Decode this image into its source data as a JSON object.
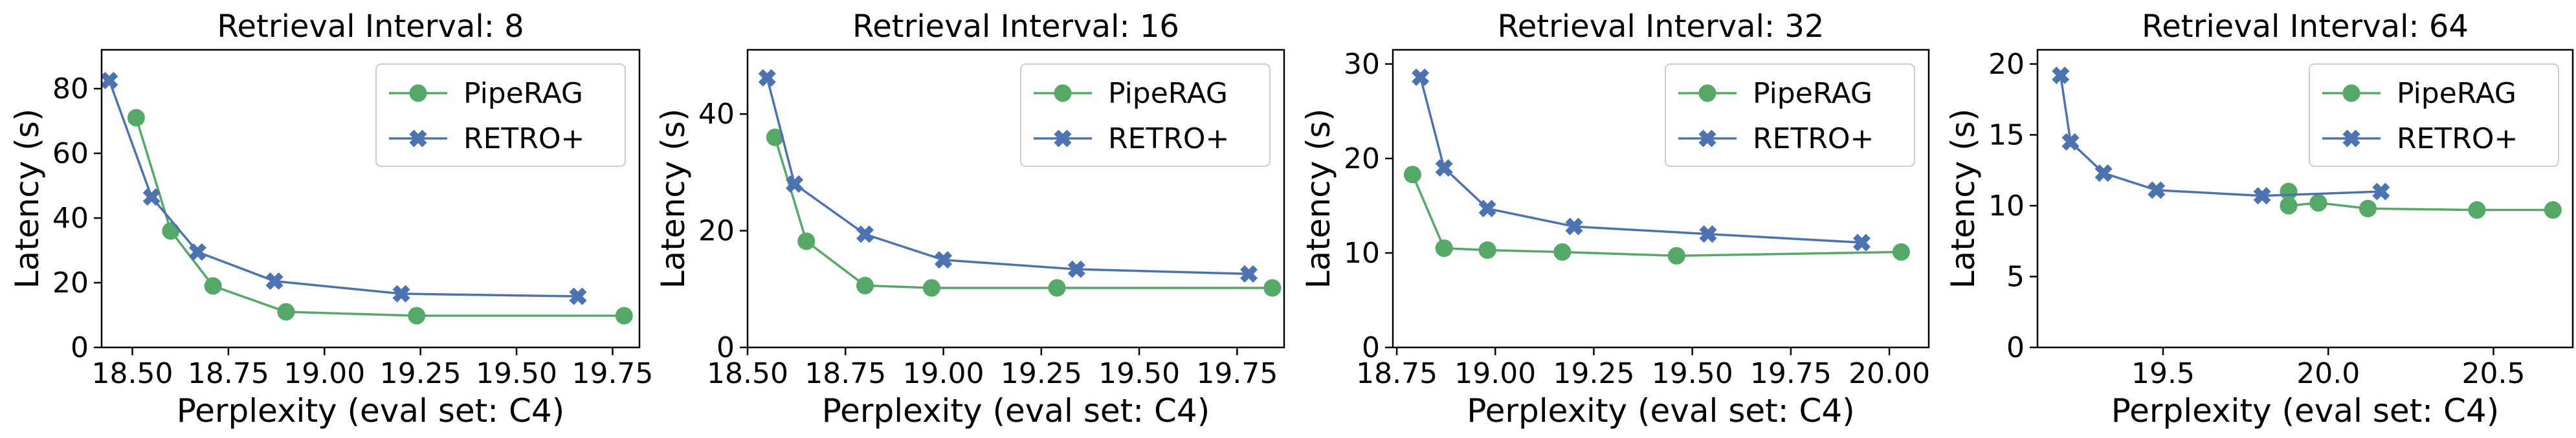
{
  "chart_data": [
    {
      "type": "line",
      "title": "Retrieval Interval: 8",
      "xlabel": "Perplexity (eval set: C4)",
      "ylabel": "Latency (s)",
      "xlim": [
        18.42,
        19.82
      ],
      "ylim": [
        0,
        92
      ],
      "xticks": [
        "18.50",
        "18.75",
        "19.00",
        "19.25",
        "19.50",
        "19.75"
      ],
      "xtick_values": [
        18.5,
        18.75,
        19.0,
        19.25,
        19.5,
        19.75
      ],
      "yticks": [
        "0",
        "20",
        "40",
        "60",
        "80"
      ],
      "ytick_values": [
        0,
        20,
        40,
        60,
        80
      ],
      "legend_position": "top-right",
      "series": [
        {
          "name": "PipeRAG",
          "color": "#55a868",
          "marker": "circle",
          "x": [
            18.51,
            18.6,
            18.71,
            18.9,
            19.24,
            19.78
          ],
          "y": [
            71,
            36,
            19,
            11,
            9.8,
            9.8
          ]
        },
        {
          "name": "RETRO+",
          "color": "#4c72b0",
          "marker": "x",
          "x": [
            18.44,
            18.55,
            18.67,
            18.87,
            19.2,
            19.66
          ],
          "y": [
            82.5,
            46.5,
            29.5,
            20.5,
            16.6,
            15.8
          ]
        }
      ]
    },
    {
      "type": "line",
      "title": "Retrieval Interval: 16",
      "xlabel": "Perplexity (eval set: C4)",
      "ylabel": "Latency (s)",
      "xlim": [
        18.5,
        19.87
      ],
      "ylim": [
        0,
        51
      ],
      "xticks": [
        "18.50",
        "18.75",
        "19.00",
        "19.25",
        "19.50",
        "19.75"
      ],
      "xtick_values": [
        18.5,
        18.75,
        19.0,
        19.25,
        19.5,
        19.75
      ],
      "yticks": [
        "0",
        "20",
        "40"
      ],
      "ytick_values": [
        0,
        20,
        40
      ],
      "legend_position": "top-right",
      "series": [
        {
          "name": "PipeRAG",
          "color": "#55a868",
          "marker": "circle",
          "x": [
            18.57,
            18.65,
            18.8,
            18.97,
            19.29,
            19.84
          ],
          "y": [
            36,
            18.2,
            10.6,
            10.2,
            10.2,
            10.2
          ]
        },
        {
          "name": "RETRO+",
          "color": "#4c72b0",
          "marker": "x",
          "x": [
            18.55,
            18.62,
            18.8,
            19.0,
            19.34,
            19.78
          ],
          "y": [
            46.2,
            28,
            19.4,
            15,
            13.4,
            12.6
          ]
        }
      ]
    },
    {
      "type": "line",
      "title": "Retrieval Interval: 32",
      "xlabel": "Perplexity (eval set: C4)",
      "ylabel": "Latency (s)",
      "xlim": [
        18.74,
        20.1
      ],
      "ylim": [
        0,
        31.5
      ],
      "xticks": [
        "18.75",
        "19.00",
        "19.25",
        "19.50",
        "19.75",
        "20.00"
      ],
      "xtick_values": [
        18.75,
        19.0,
        19.25,
        19.5,
        19.75,
        20.0
      ],
      "yticks": [
        "0",
        "10",
        "20",
        "30"
      ],
      "ytick_values": [
        0,
        10,
        20,
        30
      ],
      "legend_position": "top-right",
      "series": [
        {
          "name": "PipeRAG",
          "color": "#55a868",
          "marker": "circle",
          "x": [
            18.79,
            18.87,
            18.98,
            19.17,
            19.46,
            20.03
          ],
          "y": [
            18.3,
            10.5,
            10.3,
            10.1,
            9.7,
            10.1
          ]
        },
        {
          "name": "RETRO+",
          "color": "#4c72b0",
          "marker": "x",
          "x": [
            18.81,
            18.87,
            18.98,
            19.2,
            19.54,
            19.93
          ],
          "y": [
            28.6,
            19,
            14.7,
            12.8,
            12,
            11.1
          ]
        }
      ]
    },
    {
      "type": "line",
      "title": "Retrieval Interval: 64",
      "xlabel": "Perplexity (eval set: C4)",
      "ylabel": "Latency (s)",
      "xlim": [
        19.12,
        20.74
      ],
      "ylim": [
        0,
        21
      ],
      "xticks": [
        "19.5",
        "20.0",
        "20.5"
      ],
      "xtick_values": [
        19.5,
        20.0,
        20.5
      ],
      "yticks": [
        "0",
        "5",
        "10",
        "15",
        "20"
      ],
      "ytick_values": [
        0,
        5,
        10,
        15,
        20
      ],
      "legend_position": "top-right",
      "series": [
        {
          "name": "PipeRAG",
          "color": "#55a868",
          "marker": "circle",
          "x": [
            19.88,
            19.88,
            19.97,
            20.12,
            20.45,
            20.68
          ],
          "y": [
            11,
            10,
            10.2,
            9.8,
            9.7,
            9.7
          ]
        },
        {
          "name": "RETRO+",
          "color": "#4c72b0",
          "marker": "x",
          "x": [
            19.19,
            19.22,
            19.32,
            19.48,
            19.8,
            20.16
          ],
          "y": [
            19.2,
            14.5,
            12.3,
            11.1,
            10.7,
            11
          ]
        }
      ]
    }
  ]
}
